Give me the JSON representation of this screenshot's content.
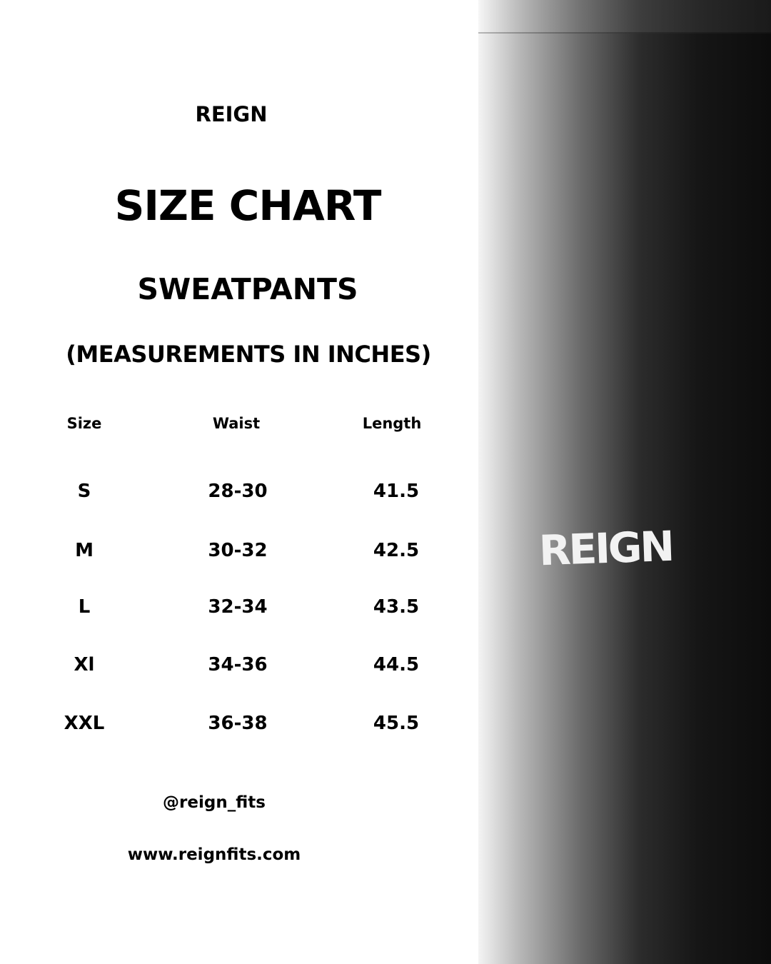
{
  "brand": "REIGN",
  "title": "SIZE CHART",
  "product": "SWEATPANTS",
  "units_note": "(MEASUREMENTS IN INCHES)",
  "table": {
    "headers": [
      "Size",
      "Waist",
      "Length"
    ],
    "rows": [
      [
        "S",
        "28-30",
        "41.5"
      ],
      [
        "M",
        "30-32",
        "42.5"
      ],
      [
        "L",
        "32-34",
        "43.5"
      ],
      [
        "Xl",
        "34-36",
        "44.5"
      ],
      [
        "XXL",
        "36-38",
        "45.5"
      ]
    ]
  },
  "social_handle": "@reign_fits",
  "website": "www.reignfits.com",
  "photo": {
    "logo_text": "REIGN"
  }
}
